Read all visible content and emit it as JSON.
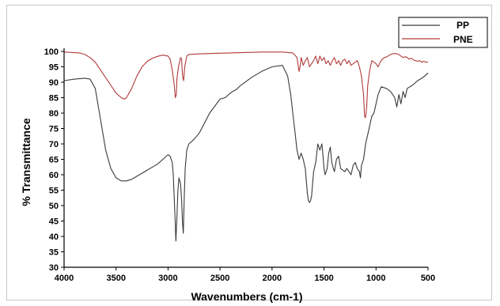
{
  "chart_data": {
    "type": "line",
    "title": "",
    "xlabel": "Wavenumbers (cm-1)",
    "ylabel": "% Transmittance",
    "xlim": [
      4000,
      500
    ],
    "ylim": [
      30,
      100
    ],
    "x_reversed": true,
    "x_ticks": [
      4000,
      3500,
      3000,
      2500,
      2000,
      1500,
      1000,
      500
    ],
    "y_ticks": [
      30,
      35,
      40,
      45,
      50,
      55,
      60,
      65,
      70,
      75,
      80,
      85,
      90,
      95,
      100
    ],
    "grid": false,
    "legend_position": "top-right",
    "series": [
      {
        "name": "PP",
        "color": "#3a3a3a",
        "x": [
          4000,
          3900,
          3800,
          3750,
          3700,
          3650,
          3600,
          3550,
          3500,
          3450,
          3400,
          3350,
          3300,
          3250,
          3200,
          3150,
          3100,
          3050,
          3000,
          2980,
          2960,
          2950,
          2940,
          2930,
          2925,
          2915,
          2905,
          2895,
          2880,
          2870,
          2860,
          2853,
          2845,
          2835,
          2820,
          2800,
          2750,
          2700,
          2600,
          2500,
          2450,
          2400,
          2380,
          2350,
          2300,
          2200,
          2100,
          2000,
          1900,
          1850,
          1820,
          1800,
          1780,
          1760,
          1740,
          1720,
          1700,
          1680,
          1660,
          1650,
          1640,
          1630,
          1620,
          1600,
          1580,
          1560,
          1540,
          1520,
          1510,
          1500,
          1490,
          1470,
          1455,
          1440,
          1425,
          1410,
          1400,
          1380,
          1360,
          1340,
          1300,
          1280,
          1260,
          1240,
          1220,
          1200,
          1180,
          1160,
          1150,
          1140,
          1120,
          1100,
          1080,
          1060,
          1040,
          1020,
          1000,
          980,
          950,
          900,
          860,
          840,
          820,
          800,
          780,
          760,
          740,
          720,
          700,
          650,
          600,
          550,
          500
        ],
        "y": [
          90.5,
          91,
          91.3,
          91,
          88,
          78,
          68,
          62,
          59,
          58,
          58,
          58.5,
          59.5,
          60.5,
          61.5,
          62.5,
          63.5,
          65,
          66.5,
          66,
          64,
          60,
          52,
          44,
          38.5,
          46,
          55,
          59,
          57,
          52,
          44,
          41,
          52,
          62,
          68,
          70,
          71.5,
          73.5,
          80,
          84.5,
          85,
          86.5,
          87,
          87.5,
          89,
          91.5,
          93.5,
          95,
          95.5,
          92,
          86,
          80,
          74,
          68,
          65,
          67,
          65,
          62,
          54,
          51.5,
          51,
          51.5,
          53,
          61,
          64,
          70,
          68,
          70,
          66,
          62,
          60,
          62,
          67,
          69,
          64,
          62,
          61,
          65,
          66,
          62,
          61,
          62,
          61,
          60,
          63,
          64,
          62,
          61,
          59,
          63,
          65,
          70,
          73,
          76,
          79,
          80,
          83,
          86,
          88.5,
          88,
          87,
          86,
          85,
          82,
          86,
          83,
          87,
          85,
          88,
          89,
          90.5,
          91.5,
          93
        ]
      },
      {
        "name": "PNE",
        "color": "#b03a3a",
        "x": [
          4000,
          3900,
          3850,
          3800,
          3750,
          3700,
          3650,
          3600,
          3550,
          3500,
          3450,
          3420,
          3400,
          3350,
          3300,
          3250,
          3200,
          3150,
          3100,
          3050,
          3000,
          2980,
          2960,
          2940,
          2930,
          2920,
          2915,
          2900,
          2880,
          2870,
          2860,
          2850,
          2840,
          2820,
          2800,
          2700,
          2600,
          2500,
          2400,
          2300,
          2200,
          2100,
          2000,
          1900,
          1800,
          1760,
          1740,
          1730,
          1720,
          1700,
          1680,
          1660,
          1640,
          1620,
          1600,
          1580,
          1560,
          1540,
          1520,
          1500,
          1480,
          1460,
          1440,
          1420,
          1400,
          1380,
          1360,
          1340,
          1320,
          1300,
          1280,
          1260,
          1240,
          1220,
          1200,
          1180,
          1160,
          1140,
          1120,
          1110,
          1100,
          1090,
          1080,
          1060,
          1040,
          1020,
          1000,
          980,
          960,
          940,
          920,
          900,
          880,
          860,
          840,
          820,
          800,
          780,
          760,
          740,
          720,
          700,
          680,
          660,
          640,
          620,
          600,
          580,
          560,
          540,
          520,
          500
        ],
        "y": [
          99.8,
          99.6,
          99.5,
          99,
          98,
          96.5,
          94,
          91.5,
          89,
          86.5,
          85,
          84.5,
          85,
          88,
          92,
          95,
          96.8,
          97.8,
          98.4,
          98.8,
          98.5,
          97.5,
          94,
          89,
          85,
          86,
          91,
          95,
          98,
          97.5,
          92,
          90.5,
          95,
          98.5,
          99,
          99.2,
          99.3,
          99.4,
          99.5,
          99.6,
          99.7,
          99.8,
          99.8,
          99.8,
          99.5,
          98,
          93.5,
          95,
          98,
          95.5,
          97,
          98,
          95,
          96,
          97,
          98.5,
          96,
          98.5,
          97,
          98,
          96,
          97,
          95.5,
          97,
          98,
          96,
          97,
          95.5,
          97,
          97.5,
          96,
          97,
          95.5,
          96,
          96.5,
          97,
          95,
          92,
          86,
          79,
          78.5,
          82,
          89,
          94,
          97,
          96.5,
          96,
          95,
          96.5,
          97.5,
          98,
          98.2,
          98.6,
          99,
          99.2,
          99.3,
          99.2,
          99,
          98.5,
          98,
          98.3,
          98,
          97.5,
          97.8,
          97.2,
          97,
          96.8,
          97,
          96.5,
          96.8,
          96.5,
          96.5
        ]
      }
    ]
  }
}
